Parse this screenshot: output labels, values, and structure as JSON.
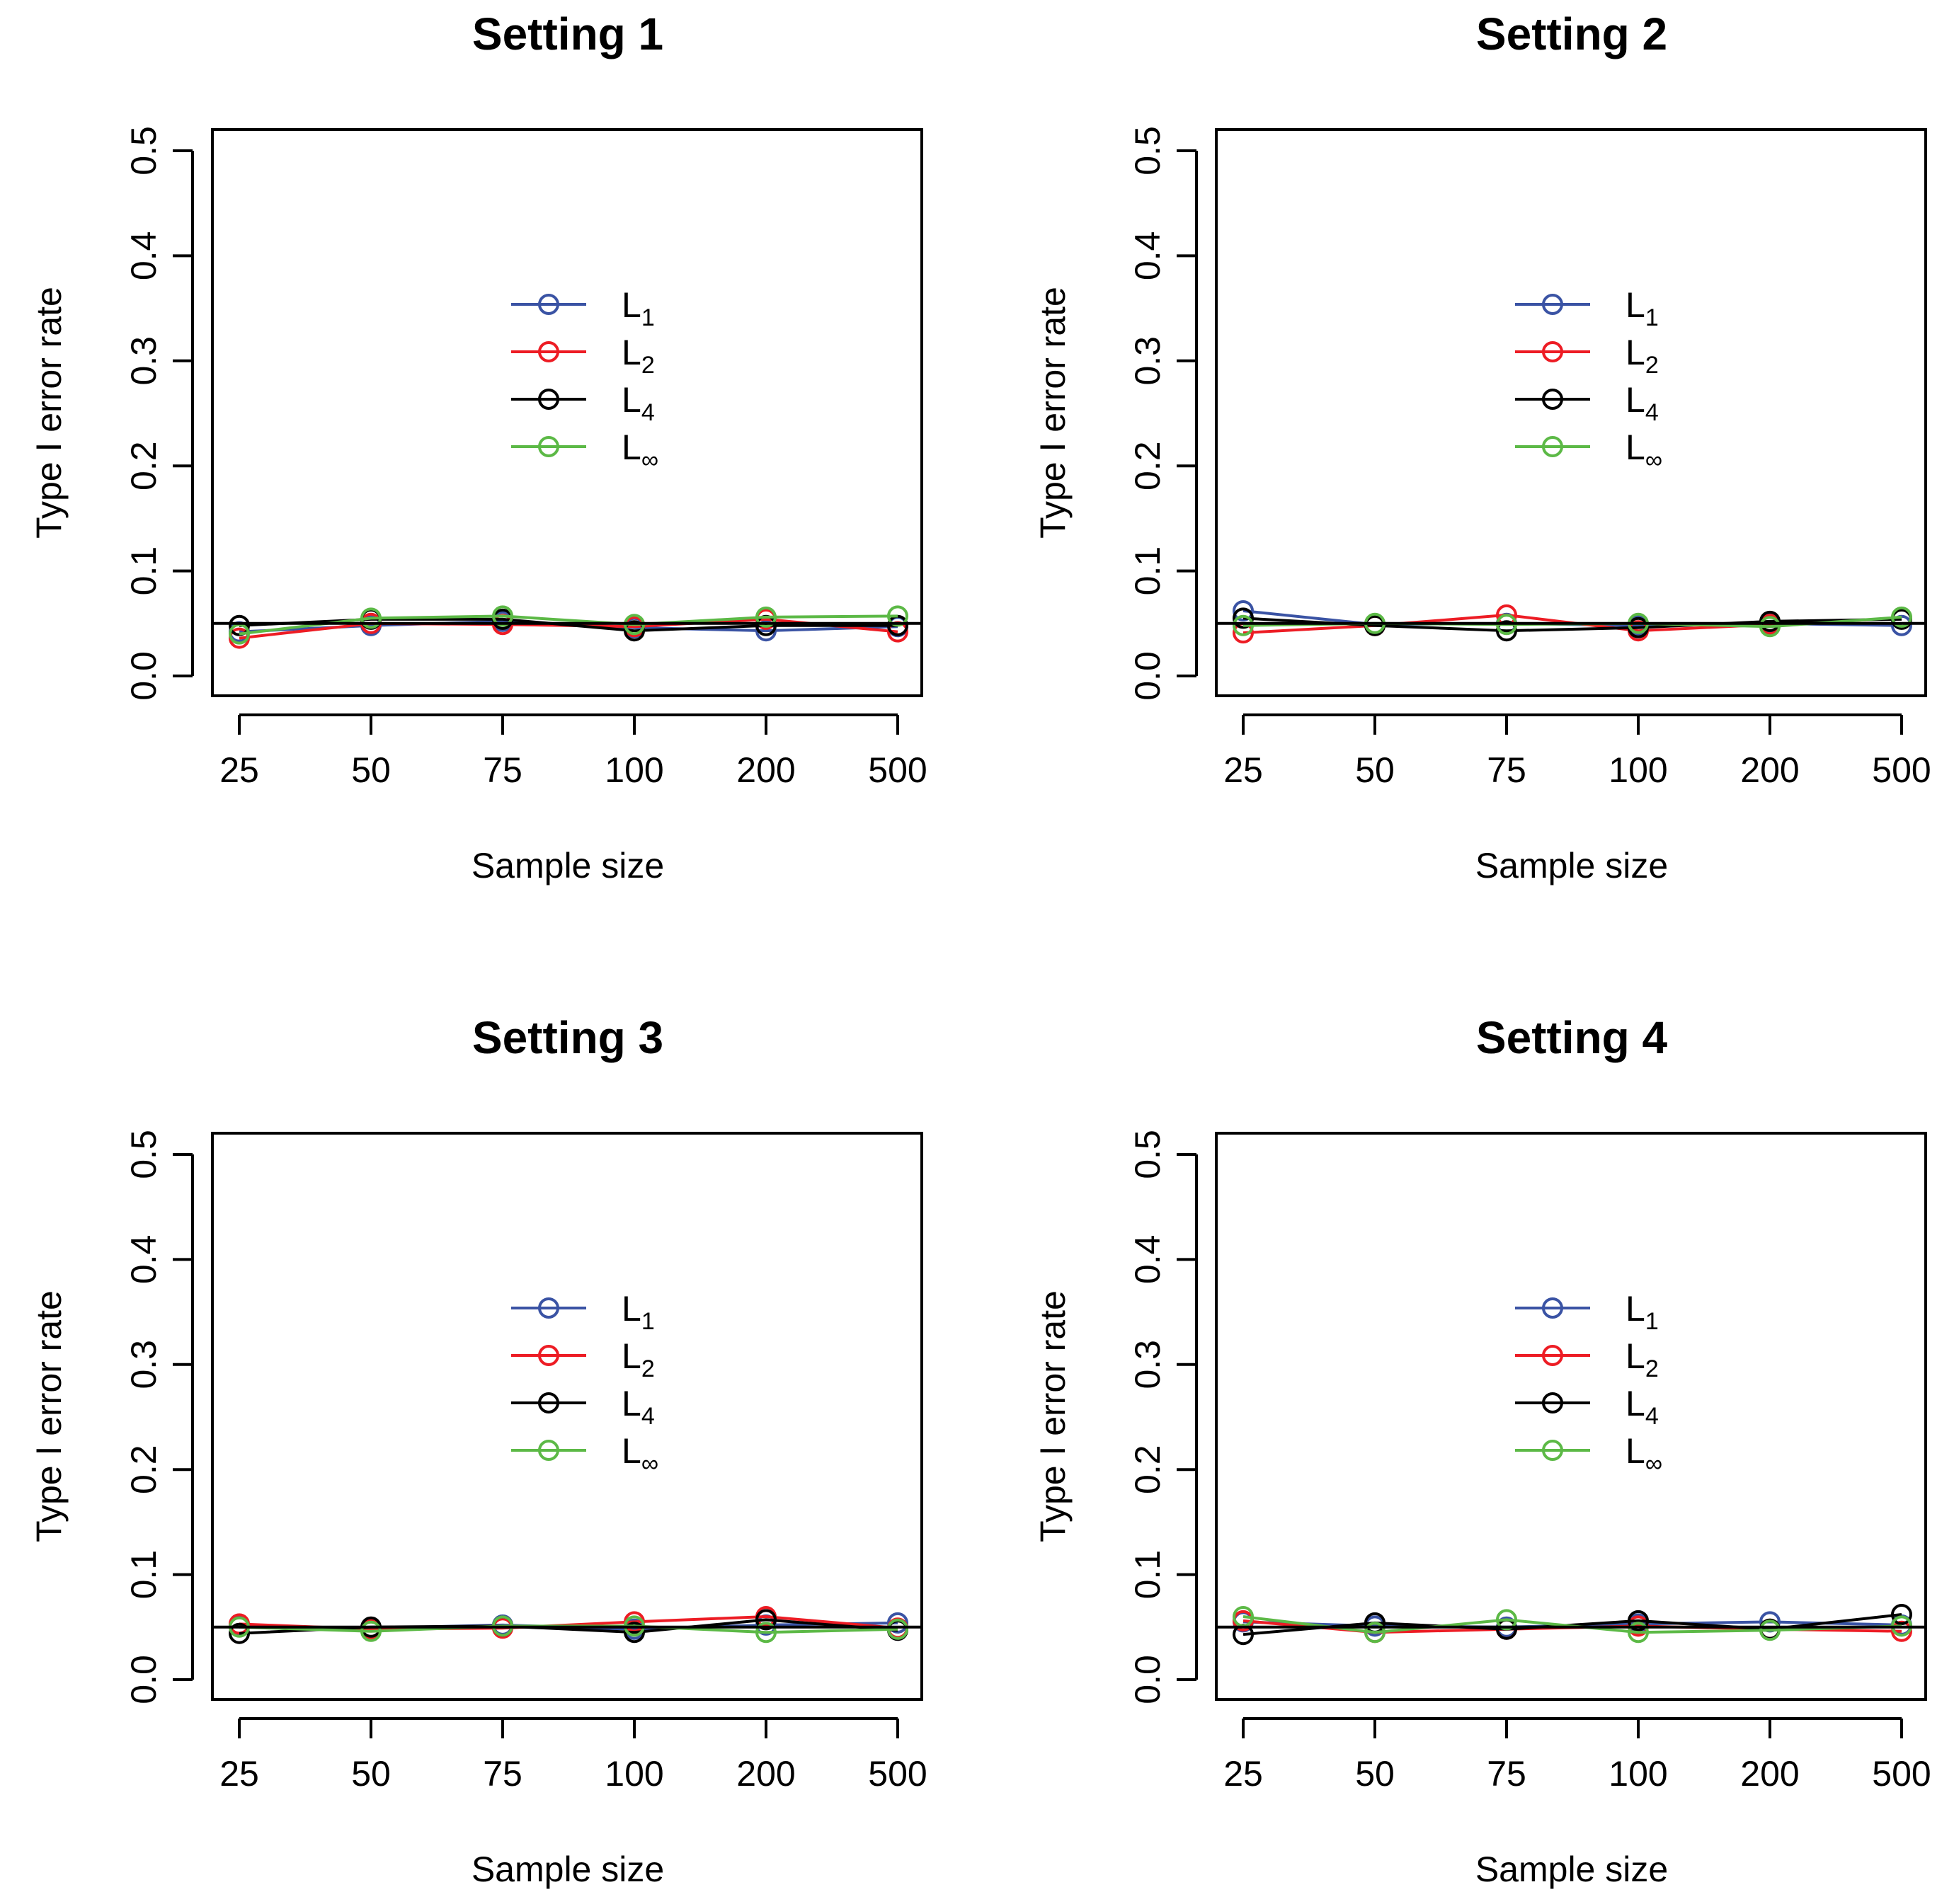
{
  "figure": {
    "layout": "2x2 grid"
  },
  "colors": {
    "L1": "#3a53a4",
    "L2": "#ed1c24",
    "L4": "#000000",
    "Linf": "#5cb946",
    "reference": "#000000"
  },
  "legend_template": [
    {
      "key": "L1",
      "base": "L",
      "sub": "1"
    },
    {
      "key": "L2",
      "base": "L",
      "sub": "2"
    },
    {
      "key": "L4",
      "base": "L",
      "sub": "4"
    },
    {
      "key": "Linf",
      "base": "L",
      "sub": "∞"
    }
  ],
  "chart_data": [
    {
      "type": "line",
      "title": "Setting 1",
      "xlabel": "Sample size",
      "ylabel": "Type I error rate",
      "categories": [
        "25",
        "50",
        "75",
        "100",
        "200",
        "500"
      ],
      "yticks": [
        "0.0",
        "0.1",
        "0.2",
        "0.3",
        "0.4",
        "0.5"
      ],
      "ylim": [
        0,
        0.5
      ],
      "reference_line": 0.05,
      "legend_position": "center",
      "series": [
        {
          "key": "L1",
          "name": "L1",
          "values": [
            0.042,
            0.048,
            0.052,
            0.046,
            0.043,
            0.047
          ]
        },
        {
          "key": "L2",
          "name": "L2",
          "values": [
            0.036,
            0.05,
            0.049,
            0.047,
            0.054,
            0.042
          ]
        },
        {
          "key": "L4",
          "name": "L4",
          "values": [
            0.048,
            0.054,
            0.054,
            0.043,
            0.048,
            0.048
          ]
        },
        {
          "key": "Linf",
          "name": "L∞",
          "values": [
            0.04,
            0.055,
            0.057,
            0.049,
            0.056,
            0.057
          ]
        }
      ]
    },
    {
      "type": "line",
      "title": "Setting 2",
      "xlabel": "Sample size",
      "ylabel": "Type I error rate",
      "categories": [
        "25",
        "50",
        "75",
        "100",
        "200",
        "500"
      ],
      "yticks": [
        "0.0",
        "0.1",
        "0.2",
        "0.3",
        "0.4",
        "0.5"
      ],
      "ylim": [
        0,
        0.5
      ],
      "reference_line": 0.05,
      "legend_position": "center",
      "series": [
        {
          "key": "L1",
          "name": "L1",
          "values": [
            0.062,
            0.049,
            0.05,
            0.048,
            0.05,
            0.048
          ]
        },
        {
          "key": "L2",
          "name": "L2",
          "values": [
            0.041,
            0.048,
            0.058,
            0.043,
            0.049,
            0.055
          ]
        },
        {
          "key": "L4",
          "name": "L4",
          "values": [
            0.055,
            0.048,
            0.043,
            0.046,
            0.052,
            0.054
          ]
        },
        {
          "key": "Linf",
          "name": "L∞",
          "values": [
            0.048,
            0.05,
            0.049,
            0.05,
            0.047,
            0.056
          ]
        }
      ]
    },
    {
      "type": "line",
      "title": "Setting 3",
      "xlabel": "Sample size",
      "ylabel": "Type I error rate",
      "categories": [
        "25",
        "50",
        "75",
        "100",
        "200",
        "500"
      ],
      "yticks": [
        "0.0",
        "0.1",
        "0.2",
        "0.3",
        "0.4",
        "0.5"
      ],
      "ylim": [
        0,
        0.5
      ],
      "reference_line": 0.05,
      "legend_position": "center",
      "series": [
        {
          "key": "L1",
          "name": "L1",
          "values": [
            0.051,
            0.049,
            0.052,
            0.048,
            0.052,
            0.054
          ]
        },
        {
          "key": "L2",
          "name": "L2",
          "values": [
            0.053,
            0.048,
            0.049,
            0.055,
            0.06,
            0.049
          ]
        },
        {
          "key": "L4",
          "name": "L4",
          "values": [
            0.044,
            0.05,
            0.051,
            0.045,
            0.057,
            0.047
          ]
        },
        {
          "key": "Linf",
          "name": "L∞",
          "values": [
            0.05,
            0.046,
            0.051,
            0.051,
            0.045,
            0.048
          ]
        }
      ]
    },
    {
      "type": "line",
      "title": "Setting 4",
      "xlabel": "Sample size",
      "ylabel": "Type I error rate",
      "categories": [
        "25",
        "50",
        "75",
        "100",
        "200",
        "500"
      ],
      "yticks": [
        "0.0",
        "0.1",
        "0.2",
        "0.3",
        "0.4",
        "0.5"
      ],
      "ylim": [
        0,
        0.5
      ],
      "reference_line": 0.05,
      "legend_position": "center",
      "series": [
        {
          "key": "L1",
          "name": "L1",
          "values": [
            0.055,
            0.051,
            0.05,
            0.053,
            0.055,
            0.052
          ]
        },
        {
          "key": "L2",
          "name": "L2",
          "values": [
            0.056,
            0.045,
            0.048,
            0.051,
            0.048,
            0.046
          ]
        },
        {
          "key": "L4",
          "name": "L4",
          "values": [
            0.043,
            0.054,
            0.048,
            0.056,
            0.048,
            0.062
          ]
        },
        {
          "key": "Linf",
          "name": "L∞",
          "values": [
            0.06,
            0.045,
            0.057,
            0.045,
            0.047,
            0.051
          ]
        }
      ]
    }
  ]
}
